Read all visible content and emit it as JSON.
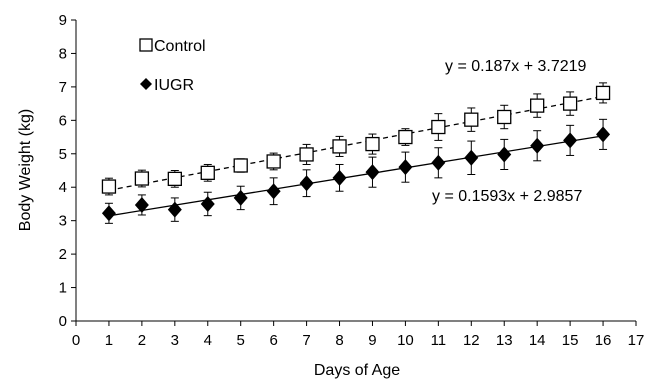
{
  "chart_data": {
    "type": "scatter",
    "xlabel": "Days of Age",
    "ylabel": "Body Weight (kg)",
    "xlim": [
      0,
      17
    ],
    "ylim": [
      0,
      9
    ],
    "xticks": [
      0,
      1,
      2,
      3,
      4,
      5,
      6,
      7,
      8,
      9,
      10,
      11,
      12,
      13,
      14,
      15,
      16,
      17
    ],
    "yticks": [
      0,
      1,
      2,
      3,
      4,
      5,
      6,
      7,
      8,
      9
    ],
    "grid": false,
    "legend_position": "top-left",
    "series": [
      {
        "name": "Control",
        "marker": "open-square",
        "trendline_style": "dashed",
        "equation": "y = 0.187x + 3.7219",
        "slope": 0.187,
        "intercept": 3.7219,
        "x": [
          1,
          2,
          3,
          4,
          5,
          6,
          7,
          8,
          9,
          10,
          11,
          12,
          13,
          14,
          15,
          16
        ],
        "y": [
          4.02,
          4.26,
          4.25,
          4.43,
          4.65,
          4.77,
          4.98,
          5.22,
          5.29,
          5.5,
          5.8,
          6.02,
          6.1,
          6.44,
          6.5,
          6.82
        ],
        "error": [
          0.25,
          0.25,
          0.25,
          0.25,
          0.2,
          0.25,
          0.3,
          0.3,
          0.3,
          0.25,
          0.4,
          0.35,
          0.35,
          0.35,
          0.35,
          0.3
        ]
      },
      {
        "name": "IUGR",
        "marker": "filled-diamond",
        "trendline_style": "solid",
        "equation": "y = 0.1593x + 2.9857",
        "slope": 0.1593,
        "intercept": 2.9857,
        "x": [
          1,
          2,
          3,
          4,
          5,
          6,
          7,
          8,
          9,
          10,
          11,
          12,
          13,
          14,
          15,
          16
        ],
        "y": [
          3.22,
          3.47,
          3.33,
          3.5,
          3.68,
          3.88,
          4.12,
          4.28,
          4.45,
          4.6,
          4.73,
          4.88,
          4.98,
          5.24,
          5.4,
          5.58
        ],
        "error": [
          0.3,
          0.3,
          0.35,
          0.35,
          0.35,
          0.4,
          0.4,
          0.4,
          0.45,
          0.45,
          0.45,
          0.5,
          0.45,
          0.45,
          0.45,
          0.45
        ]
      }
    ]
  }
}
